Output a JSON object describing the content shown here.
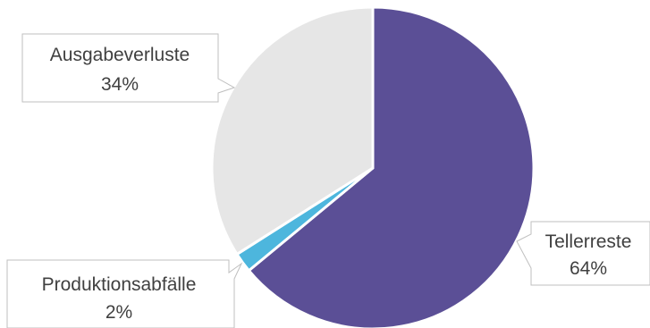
{
  "chart_data": {
    "type": "pie",
    "slices": [
      {
        "label": "Tellerreste",
        "value": 64,
        "value_label": "64%",
        "color": "#5b4f96"
      },
      {
        "label": "Produktionsabfälle",
        "value": 2,
        "value_label": "2%",
        "color": "#4db6dd"
      },
      {
        "label": "Ausgabeverluste",
        "value": 34,
        "value_label": "34%",
        "color": "#e6e6e6"
      }
    ],
    "start_angle": "12 o'clock",
    "direction": "clockwise",
    "label_style": "callouts with category name and percentage",
    "legend": "none"
  }
}
